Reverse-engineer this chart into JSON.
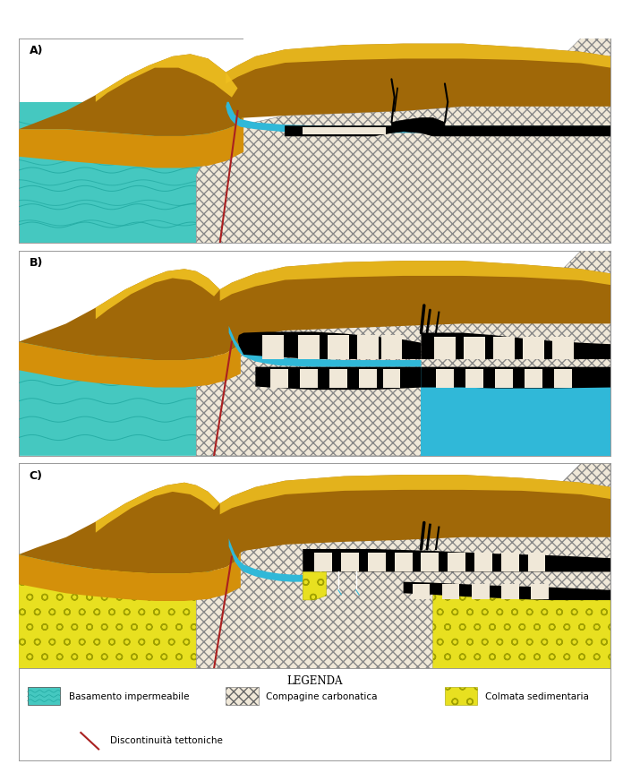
{
  "bg_color": "#ffffff",
  "border_color": "#999999",
  "panel_labels": [
    "A)",
    "B)",
    "C)"
  ],
  "legend_title": "LEGENDA",
  "cyan_color": "#45c8c0",
  "cyan_dark": "#20a8a0",
  "gold_top": "#f0c020",
  "gold_mid": "#d4900a",
  "gold_dark": "#a06808",
  "gold_edge": "#c8a840",
  "carb_color": "#f0e8d8",
  "carb_edge": "#888888",
  "black_color": "#111111",
  "fault_color": "#aa2020",
  "water_color": "#30b8d8",
  "sediment_color": "#e8e020",
  "sediment_edge": "#a0a000",
  "white_color": "#ffffff"
}
